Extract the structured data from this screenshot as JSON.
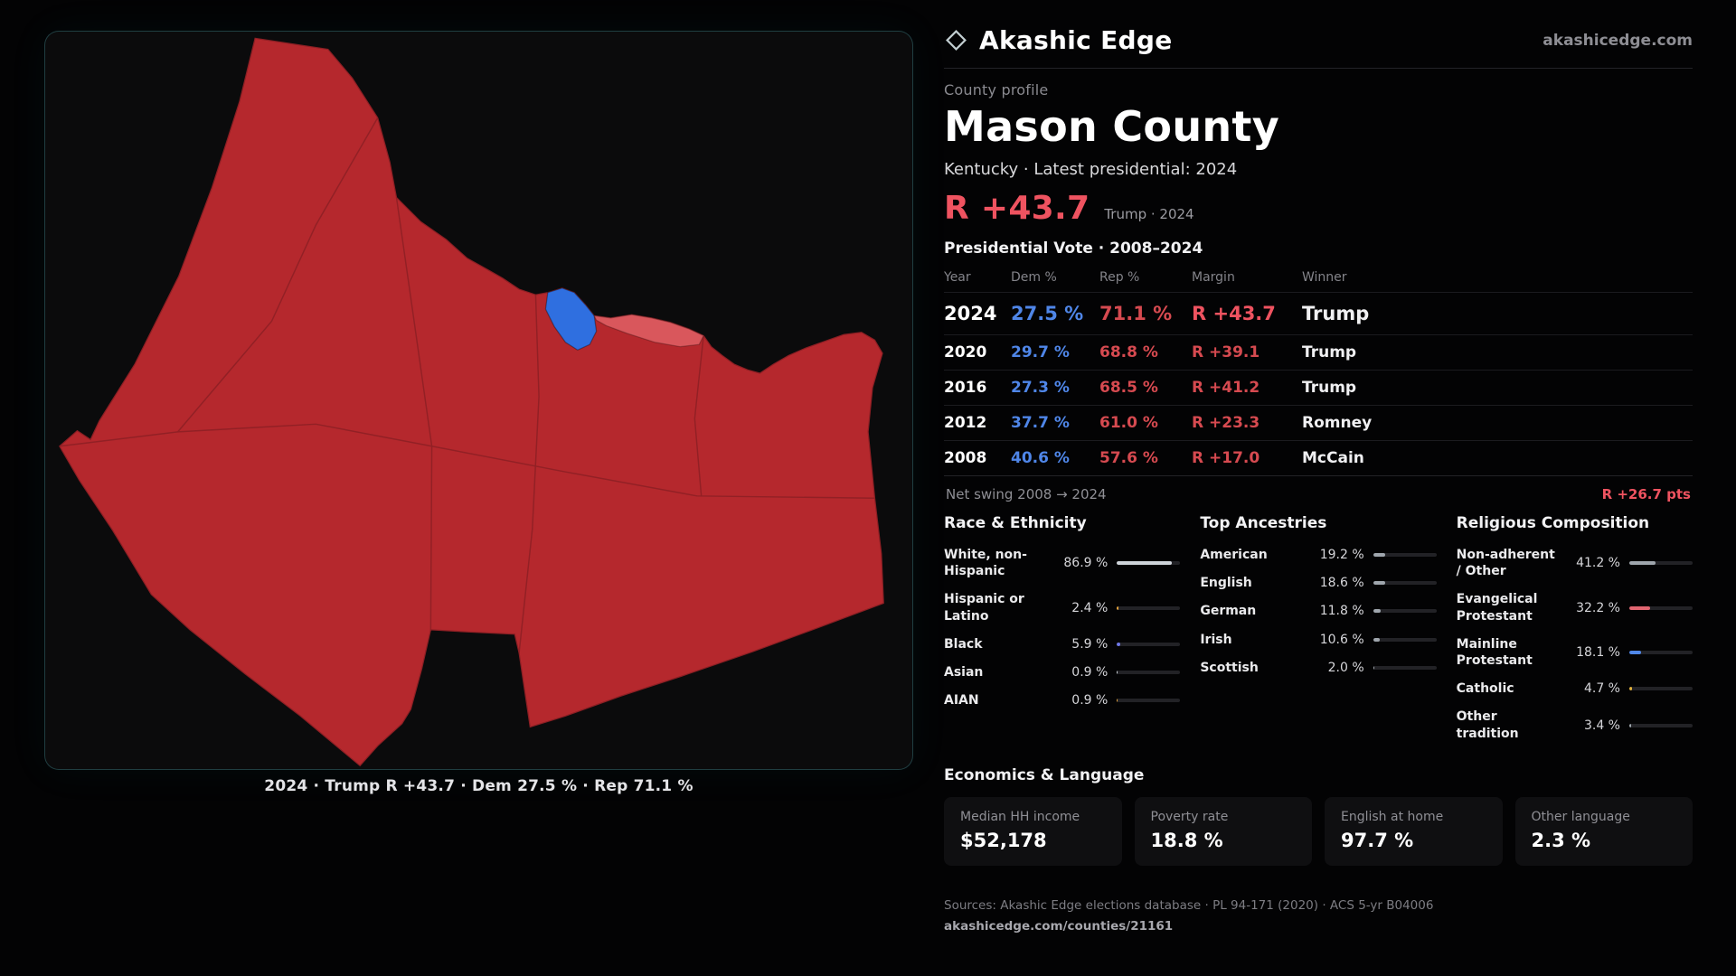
{
  "colors": {
    "accent_red": "#ef5360",
    "dem_blue": "#4f86e8",
    "rep_red": "#d64a50",
    "page_bg": "#030304"
  },
  "brand": {
    "name": "Akashic Edge",
    "domain": "akashicedge.com"
  },
  "profile": {
    "kicker": "County profile",
    "title": "Mason County",
    "subtitle": "Kentucky · Latest presidential: 2024",
    "margin_value": "R +43.7",
    "margin_caption": "Trump · 2024"
  },
  "map": {
    "caption": "2024 · Trump R +43.7 · Dem 27.5 % · Rep 71.1 %",
    "colors": {
      "rep": "#b5282d",
      "dem": "#2f6fe0",
      "rep_light": "#d9575c"
    }
  },
  "vote_table": {
    "title": "Presidential Vote · 2008–2024",
    "columns": [
      "Year",
      "Dem %",
      "Rep %",
      "Margin",
      "Winner"
    ],
    "rows": [
      {
        "year": "2024",
        "dem": "27.5 %",
        "rep": "71.1 %",
        "margin": "R +43.7",
        "winner": "Trump",
        "latest": true
      },
      {
        "year": "2020",
        "dem": "29.7 %",
        "rep": "68.8 %",
        "margin": "R +39.1",
        "winner": "Trump",
        "latest": false
      },
      {
        "year": "2016",
        "dem": "27.3 %",
        "rep": "68.5 %",
        "margin": "R +41.2",
        "winner": "Trump",
        "latest": false
      },
      {
        "year": "2012",
        "dem": "37.7 %",
        "rep": "61.0 %",
        "margin": "R +23.3",
        "winner": "Romney",
        "latest": false
      },
      {
        "year": "2008",
        "dem": "40.6 %",
        "rep": "57.6 %",
        "margin": "R +17.0",
        "winner": "McCain",
        "latest": false
      }
    ],
    "net_swing_label": "Net swing 2008 → 2024",
    "net_swing_value": "R +26.7 pts"
  },
  "demographics": [
    {
      "title": "Race & Ethnicity",
      "rows": [
        {
          "label": "White, non-Hispanic",
          "value": "86.9 %",
          "pct": 86.9,
          "color": "#cfd4da"
        },
        {
          "label": "Hispanic or Latino",
          "value": "2.4 %",
          "pct": 2.4,
          "color": "#e3a23c"
        },
        {
          "label": "Black",
          "value": "5.9 %",
          "pct": 5.9,
          "color": "#6f78e8"
        },
        {
          "label": "Asian",
          "value": "0.9 %",
          "pct": 0.9,
          "color": "#cfd4da"
        },
        {
          "label": "AIAN",
          "value": "0.9 %",
          "pct": 0.9,
          "color": "#e3a23c"
        }
      ]
    },
    {
      "title": "Top Ancestries",
      "rows": [
        {
          "label": "American",
          "value": "19.2 %",
          "pct": 19.2,
          "color": "#9fa6ad"
        },
        {
          "label": "English",
          "value": "18.6 %",
          "pct": 18.6,
          "color": "#9fa6ad"
        },
        {
          "label": "German",
          "value": "11.8 %",
          "pct": 11.8,
          "color": "#9fa6ad"
        },
        {
          "label": "Irish",
          "value": "10.6 %",
          "pct": 10.6,
          "color": "#9fa6ad"
        },
        {
          "label": "Scottish",
          "value": "2.0 %",
          "pct": 2.0,
          "color": "#9fa6ad"
        }
      ]
    },
    {
      "title": "Religious Composition",
      "rows": [
        {
          "label": "Non-adherent / Other",
          "value": "41.2 %",
          "pct": 41.2,
          "color": "#9fa6ad"
        },
        {
          "label": "Evangelical Protestant",
          "value": "32.2 %",
          "pct": 32.2,
          "color": "#e06570"
        },
        {
          "label": "Mainline Protestant",
          "value": "18.1 %",
          "pct": 18.1,
          "color": "#4f87e8"
        },
        {
          "label": "Catholic",
          "value": "4.7 %",
          "pct": 4.7,
          "color": "#e3b23c"
        },
        {
          "label": "Other tradition",
          "value": "3.4 %",
          "pct": 3.4,
          "color": "#9fa6ad"
        }
      ]
    }
  ],
  "economics": {
    "title": "Economics & Language",
    "stats": [
      {
        "label": "Median HH income",
        "value": "$52,178"
      },
      {
        "label": "Poverty rate",
        "value": "18.8 %"
      },
      {
        "label": "English at home",
        "value": "97.7 %"
      },
      {
        "label": "Other language",
        "value": "2.3 %"
      }
    ]
  },
  "footer": {
    "sources": "Sources: Akashic Edge elections database · PL 94-171 (2020) · ACS 5-yr B04006",
    "permalink": "akashicedge.com/counties/21161"
  }
}
